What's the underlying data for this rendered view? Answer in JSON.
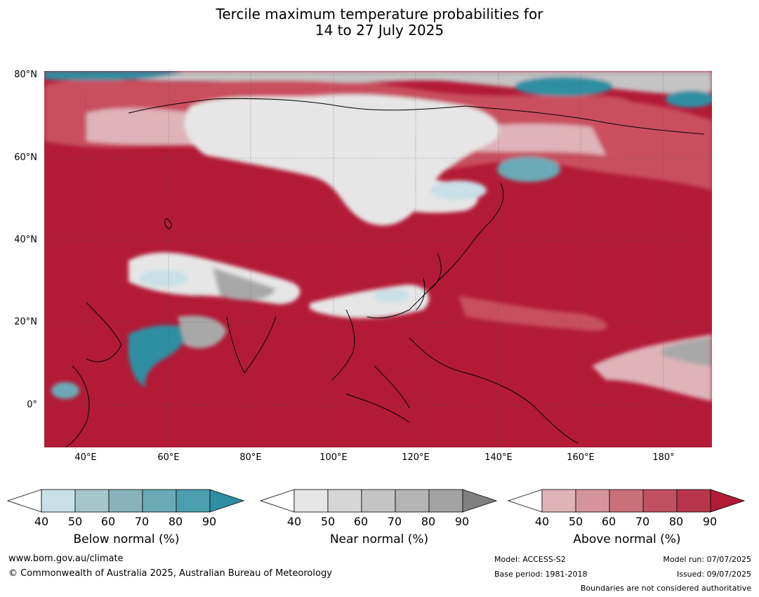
{
  "title_line1": "Tercile maximum temperature probabilities for",
  "title_line2": "14 to 27 July 2025",
  "map": {
    "lat_labels": [
      "80°N",
      "60°N",
      "40°N",
      "20°N",
      "0°"
    ],
    "lon_labels": [
      "40°E",
      "60°E",
      "80°E",
      "100°E",
      "120°E",
      "140°E",
      "160°E",
      "180°"
    ],
    "colors": {
      "above_dark": "#b31a36",
      "above_mid": "#c9505f",
      "above_light": "#dfb3b9",
      "near_white": "#e6e6e6",
      "near_gray": "#a8a8a8",
      "below_light": "#c8e0e6",
      "below_dark": "#2e8fa3"
    }
  },
  "legends": [
    {
      "title": "Below normal (%)",
      "ticks": [
        "40",
        "50",
        "60",
        "70",
        "80",
        "90"
      ],
      "colors": [
        "#ffffff",
        "#c8e0e6",
        "#a7c6cc",
        "#89b2bd",
        "#6aaab6",
        "#4a9eae",
        "#2e8fa3"
      ]
    },
    {
      "title": "Near normal (%)",
      "ticks": [
        "40",
        "50",
        "60",
        "70",
        "80",
        "90"
      ],
      "colors": [
        "#ffffff",
        "#e6e6e6",
        "#d6d6d6",
        "#c4c4c4",
        "#b4b4b4",
        "#a3a3a3",
        "#808080"
      ]
    },
    {
      "title": "Above normal (%)",
      "ticks": [
        "40",
        "50",
        "60",
        "70",
        "80",
        "90"
      ],
      "colors": [
        "#ffffff",
        "#dfb3b9",
        "#d5949c",
        "#c97079",
        "#c05160",
        "#b8364b",
        "#b31a36"
      ]
    }
  ],
  "footer": {
    "url": "www.bom.gov.au/climate",
    "copyright": "© Commonwealth of Australia 2025, Australian Bureau of Meteorology",
    "model": "Model: ACCESS-S2",
    "base_period": "Base period: 1981-2018",
    "model_run": "Model run: 07/07/2025",
    "issued": "Issued: 09/07/2025",
    "boundaries": "Boundaries are not considered authoritative"
  }
}
